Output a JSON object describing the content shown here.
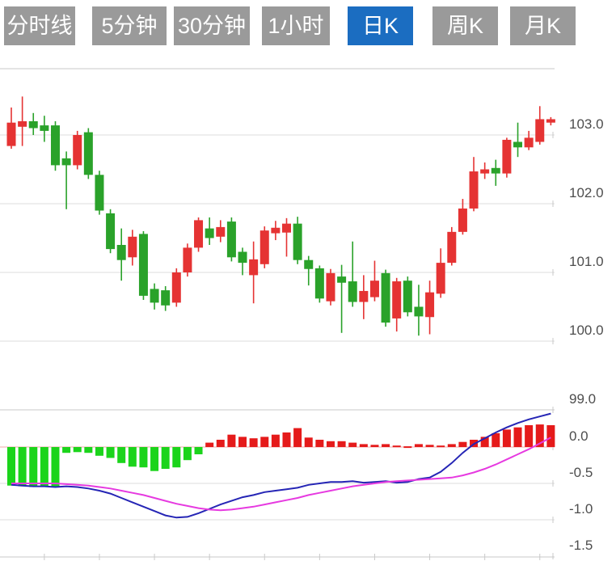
{
  "tab_bar": {
    "tabs": [
      {
        "label": "分时线"
      },
      {
        "label": "5分钟"
      },
      {
        "label": "30分钟"
      },
      {
        "label": "1小时"
      },
      {
        "label": "日K"
      },
      {
        "label": "周K"
      },
      {
        "label": "月K"
      }
    ],
    "active_index": 4
  },
  "colors": {
    "tab_bg": "#9a9a9a",
    "tab_active_bg": "#1b6dc1",
    "tab_text": "#ffffff",
    "candle_up": "#e53333",
    "candle_down": "#2aa22a",
    "macd_positive": "#e51a1a",
    "macd_negative": "#1bd41b",
    "dif_line": "#2525b5",
    "dea_line": "#e63ae0",
    "grid_line": "#dcdcdc",
    "panel_border": "#c9c9c9",
    "axis_label": "#4d4d4d",
    "zero_line": "#f2aaaa"
  },
  "chart_data": {
    "type": "candlestick",
    "title": "",
    "candle_convention": "red = up (close >= open), green = down",
    "x_tick_indices": [
      3,
      8,
      13,
      18,
      23,
      28,
      33,
      38,
      43,
      48
    ],
    "panels": [
      {
        "name": "price",
        "ylabels": [
          "103.0",
          "102.0",
          "101.0",
          "100.0",
          "99.0"
        ],
        "ylim": [
          99.0,
          103.96
        ],
        "grid": true,
        "candles_format": [
          "open",
          "high",
          "low",
          "close"
        ],
        "candles": [
          [
            102.84,
            103.4,
            102.8,
            103.18
          ],
          [
            103.12,
            103.56,
            102.84,
            103.2
          ],
          [
            103.2,
            103.32,
            103.0,
            103.1
          ],
          [
            103.14,
            103.28,
            102.9,
            103.06
          ],
          [
            103.14,
            103.2,
            102.48,
            102.56
          ],
          [
            102.66,
            102.76,
            101.92,
            102.56
          ],
          [
            102.56,
            103.06,
            102.5,
            103.0
          ],
          [
            103.04,
            103.1,
            102.36,
            102.42
          ],
          [
            102.42,
            102.48,
            101.84,
            101.9
          ],
          [
            101.86,
            101.92,
            101.28,
            101.34
          ],
          [
            101.4,
            101.64,
            100.88,
            101.18
          ],
          [
            101.22,
            101.62,
            101.1,
            101.52
          ],
          [
            101.56,
            101.6,
            100.6,
            100.66
          ],
          [
            100.76,
            100.84,
            100.46,
            100.56
          ],
          [
            100.74,
            100.8,
            100.44,
            100.52
          ],
          [
            100.56,
            101.06,
            100.5,
            101.0
          ],
          [
            101.0,
            101.42,
            100.94,
            101.36
          ],
          [
            101.36,
            101.8,
            101.3,
            101.76
          ],
          [
            101.64,
            101.8,
            101.4,
            101.5
          ],
          [
            101.52,
            101.76,
            101.44,
            101.66
          ],
          [
            101.74,
            101.8,
            101.16,
            101.22
          ],
          [
            101.3,
            101.36,
            100.96,
            101.14
          ],
          [
            100.96,
            101.45,
            100.55,
            101.19
          ],
          [
            101.12,
            101.67,
            101.06,
            101.61
          ],
          [
            101.57,
            101.75,
            101.47,
            101.65
          ],
          [
            101.58,
            101.79,
            101.23,
            101.71
          ],
          [
            101.71,
            101.81,
            101.12,
            101.18
          ],
          [
            101.18,
            101.24,
            100.81,
            101.05
          ],
          [
            101.06,
            101.1,
            100.56,
            100.62
          ],
          [
            100.58,
            101.05,
            100.52,
            100.99
          ],
          [
            100.94,
            101.11,
            100.12,
            100.85
          ],
          [
            100.87,
            101.45,
            100.5,
            100.57
          ],
          [
            100.57,
            100.96,
            100.32,
            100.73
          ],
          [
            100.64,
            101.17,
            100.58,
            100.88
          ],
          [
            100.99,
            101.04,
            100.21,
            100.27
          ],
          [
            100.33,
            100.92,
            100.14,
            100.87
          ],
          [
            100.88,
            100.94,
            100.36,
            100.42
          ],
          [
            100.5,
            100.82,
            100.08,
            100.36
          ],
          [
            100.35,
            100.88,
            100.1,
            100.71
          ],
          [
            100.69,
            101.35,
            100.63,
            101.14
          ],
          [
            101.14,
            101.66,
            101.1,
            101.59
          ],
          [
            101.59,
            102.07,
            101.55,
            101.93
          ],
          [
            101.93,
            102.68,
            101.89,
            102.47
          ],
          [
            102.44,
            102.6,
            102.36,
            102.5
          ],
          [
            102.52,
            102.64,
            102.26,
            102.44
          ],
          [
            102.44,
            102.96,
            102.38,
            102.93
          ],
          [
            102.9,
            103.18,
            102.68,
            102.82
          ],
          [
            102.82,
            103.06,
            102.78,
            102.96
          ],
          [
            102.9,
            103.42,
            102.86,
            103.23
          ],
          [
            103.18,
            103.26,
            103.14,
            103.23
          ]
        ]
      },
      {
        "name": "macd",
        "ylabels": [
          "0.0",
          "-0.5",
          "-1.0",
          "-1.5"
        ],
        "ylim": [
          -1.51,
          0.51
        ],
        "grid": true,
        "histogram": [
          -0.53,
          -0.54,
          -0.55,
          -0.54,
          -0.54,
          -0.08,
          -0.07,
          -0.08,
          -0.12,
          -0.15,
          -0.22,
          -0.27,
          -0.28,
          -0.33,
          -0.3,
          -0.28,
          -0.18,
          -0.1,
          0.06,
          0.1,
          0.17,
          0.14,
          0.12,
          0.14,
          0.17,
          0.2,
          0.26,
          0.13,
          0.1,
          0.08,
          0.08,
          0.06,
          0.04,
          0.03,
          0.04,
          0.02,
          0.01,
          0.04,
          0.03,
          0.02,
          0.04,
          0.07,
          0.1,
          0.14,
          0.19,
          0.24,
          0.27,
          0.3,
          0.31,
          0.3
        ],
        "series": [
          {
            "name": "DIF",
            "values": [
              -0.52,
              -0.53,
              -0.54,
              -0.54,
              -0.55,
              -0.54,
              -0.55,
              -0.57,
              -0.6,
              -0.64,
              -0.7,
              -0.76,
              -0.82,
              -0.88,
              -0.94,
              -0.97,
              -0.96,
              -0.91,
              -0.85,
              -0.79,
              -0.74,
              -0.69,
              -0.66,
              -0.62,
              -0.6,
              -0.58,
              -0.56,
              -0.52,
              -0.5,
              -0.48,
              -0.48,
              -0.47,
              -0.49,
              -0.48,
              -0.47,
              -0.49,
              -0.48,
              -0.44,
              -0.42,
              -0.34,
              -0.22,
              -0.08,
              0.04,
              0.12,
              0.2,
              0.27,
              0.33,
              0.38,
              0.42,
              0.46
            ]
          },
          {
            "name": "DEA",
            "values": [
              -0.5,
              -0.5,
              -0.5,
              -0.5,
              -0.5,
              -0.51,
              -0.52,
              -0.53,
              -0.55,
              -0.57,
              -0.6,
              -0.63,
              -0.66,
              -0.7,
              -0.74,
              -0.78,
              -0.81,
              -0.84,
              -0.86,
              -0.87,
              -0.86,
              -0.84,
              -0.82,
              -0.79,
              -0.76,
              -0.73,
              -0.7,
              -0.66,
              -0.63,
              -0.6,
              -0.57,
              -0.54,
              -0.52,
              -0.5,
              -0.48,
              -0.47,
              -0.46,
              -0.45,
              -0.44,
              -0.43,
              -0.42,
              -0.39,
              -0.35,
              -0.3,
              -0.24,
              -0.17,
              -0.1,
              -0.03,
              0.05,
              0.13
            ]
          }
        ]
      }
    ]
  }
}
